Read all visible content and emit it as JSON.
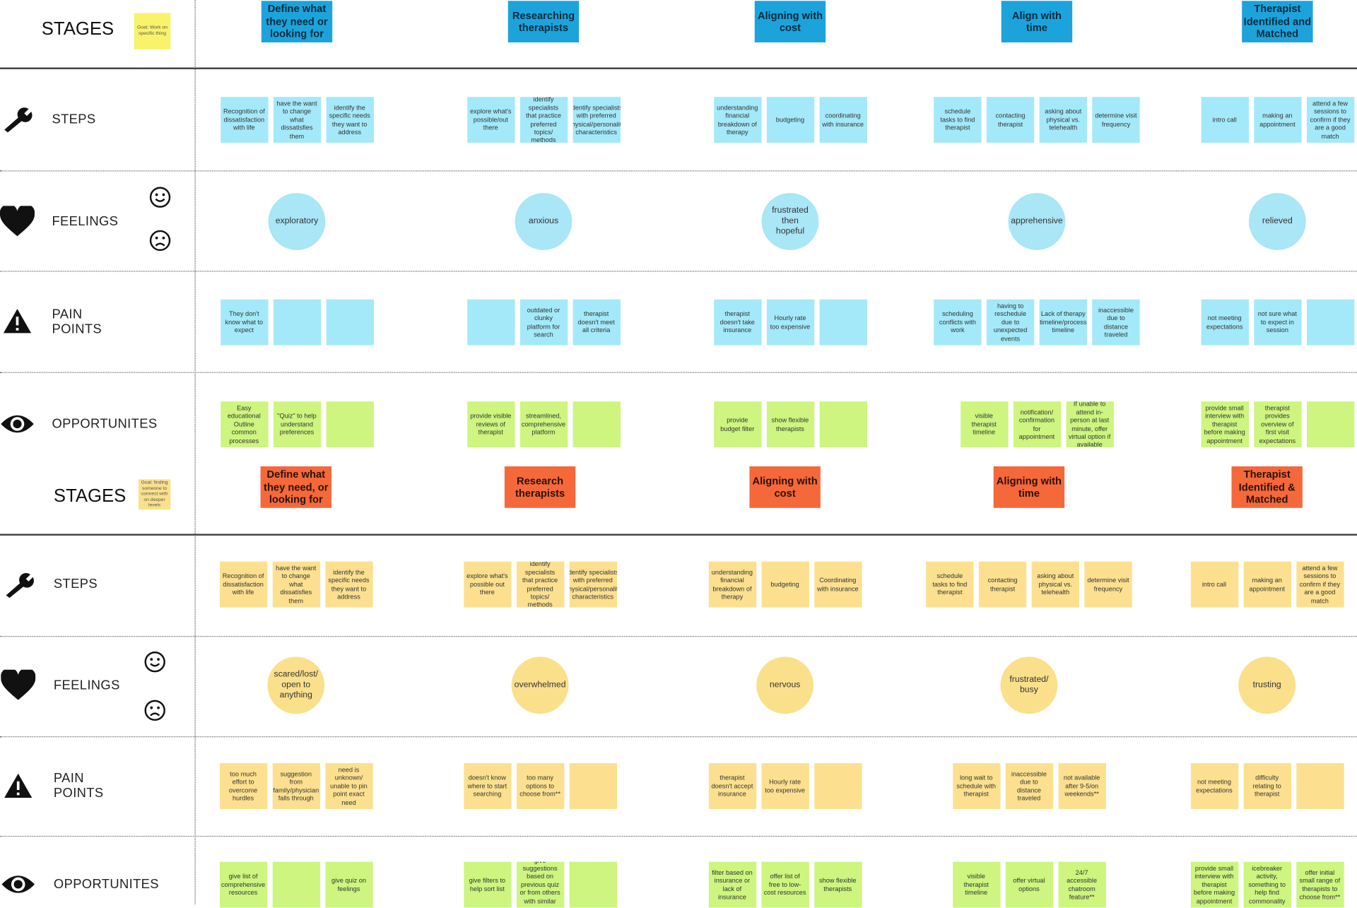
{
  "boards": [
    {
      "stages_label": "STAGES",
      "goal_note": "Goal: Work on specific thing",
      "stages": [
        "Define what they need or looking for",
        "Researching therapists",
        "Aligning with cost",
        "Align with time",
        "Therapist Identified and Matched"
      ],
      "rows": [
        {
          "label": "STEPS",
          "items": [
            [
              "Recognition of dissatisfaction with life",
              "have the want to change what dissatisfies them",
              "identify the specific needs they want to address"
            ],
            [
              "explore what's possible/out there",
              "identify specialists that practice preferred topics/ methods",
              "identify specialists with preferred physical/personality characteristics"
            ],
            [
              "understanding financial breakdown of therapy",
              "budgeting",
              "coordinating with insurance"
            ],
            [
              "schedule tasks to find therapist",
              "contacting therapist",
              "asking about physical vs. telehealth",
              "determine visit frequency"
            ],
            [
              "intro call",
              "making an appointment",
              "attend a few sessions to confirm if they are a good match"
            ]
          ]
        },
        {
          "label": "FEELINGS",
          "items": [
            "exploratory",
            "anxious",
            "frustrated then hopeful",
            "apprehensive",
            "relieved"
          ]
        },
        {
          "label": "PAIN POINTS",
          "items": [
            [
              "They don't know what to expect",
              null,
              null
            ],
            [
              null,
              "outdated or clunky platform for search",
              "therapist doesn't meet all criteria"
            ],
            [
              "therapist doesn't take insurance",
              "Hourly rate too expensive",
              null
            ],
            [
              "scheduling conflicts with work",
              "having to reschedule due to unexpected events",
              "Lack of therapy timeline/process timeline",
              "inaccessible due to distance traveled"
            ],
            [
              "not meeting expectations",
              "not sure what to expect in session",
              null
            ]
          ]
        },
        {
          "label": "OPPORTUNITES",
          "items": [
            [
              "Easy educational Outline common processes",
              "\"Quiz\" to help understand preferences",
              null
            ],
            [
              "provide visible reviews of therapist",
              "streamlined, comprehensive platform",
              null
            ],
            [
              "provide budget filter",
              "show flexible therapists",
              null
            ],
            [
              "visible therapist timeline",
              "notification/ confirmation for appointment",
              "If unable to attend in-person at last minute, offer virtual option if available"
            ],
            [
              "provide small interview with therapist before making appointment",
              "therapist provides overview of first visit expectations",
              null
            ]
          ]
        }
      ]
    },
    {
      "stages_label": "STAGES",
      "goal_note": "Goal: finding someone to connect with on deeper levels",
      "stages": [
        "Define what they need, or looking for",
        "Research therapists",
        "Aligning with cost",
        "Aligning with time",
        "Therapist Identified & Matched"
      ],
      "rows": [
        {
          "label": "STEPS",
          "items": [
            [
              "Recognition of dissatisfaction with life",
              "have the want to change what dissatisfies them",
              "identify the specific needs they want to address"
            ],
            [
              "explore what's possible out there",
              "identify specialists that practice preferred topics/ methods",
              "identify specialists with preferred physical/personality characteristics"
            ],
            [
              "understanding financial breakdown of therapy",
              "budgeting",
              "Coordinating with insurance"
            ],
            [
              "schedule tasks to find therapist",
              "contacting therapist",
              "asking about physical vs. telehealth",
              "determine visit frequency"
            ],
            [
              "intro call",
              "making an appointment",
              "attend a few sessions to confirm if they are a good match"
            ]
          ]
        },
        {
          "label": "FEELINGS",
          "items": [
            "scared/lost/ open to anything",
            "overwhelmed",
            "nervous",
            "frustrated/ busy",
            "trusting"
          ]
        },
        {
          "label": "PAIN POINTS",
          "items": [
            [
              "too much effort to overcome hurdles",
              "suggestion from family/physician falls through",
              "need is unknown/ unable to pin point exact need"
            ],
            [
              "doesn't know where to start searching",
              "too many options to choose from**",
              null
            ],
            [
              "therapist doesn't accept insurance",
              "Hourly rate too expensive",
              null
            ],
            [
              "long wait to schedule with therapist",
              "inaccessible due to distance traveled",
              "not available after 9-5/on weekends**"
            ],
            [
              "not meeting expectations",
              "difficulty relating to therapist",
              null
            ]
          ]
        },
        {
          "label": "OPPORTUNITES",
          "items": [
            [
              "give list of comprehensive resources",
              null,
              "give quiz on feelings"
            ],
            [
              "give filters to help sort list",
              "give suggestions based on previous quiz or from others with similar answers",
              null
            ],
            [
              "filter based on insurance or lack of insurance",
              "offer list of free to low-cost resources",
              "show flexible therapists"
            ],
            [
              "visible therapist timeline",
              "offer virtual options",
              "24/7 accessible chatroom feature**"
            ],
            [
              "provide small interview with therapist before making appointment",
              "icebreaker activity, something to help find commonality",
              "offer initial small range of therapists to choose from**"
            ]
          ]
        }
      ]
    }
  ]
}
